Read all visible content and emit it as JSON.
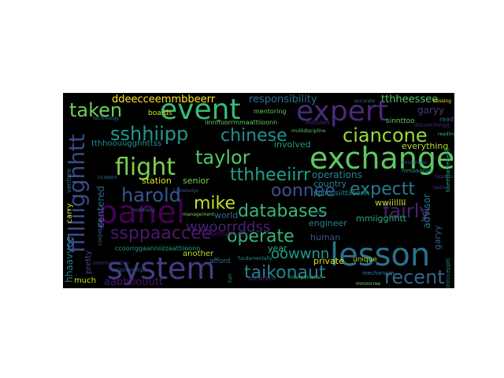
{
  "words": [
    {
      "text": "event",
      "color": "#3aba76"
    },
    {
      "text": "expert",
      "color": "#482a7a"
    },
    {
      "text": "exchange",
      "color": "#5ec962"
    },
    {
      "text": "lesson",
      "color": "#2c718e"
    },
    {
      "text": "system",
      "color": "#433e85"
    },
    {
      "text": "panel",
      "color": "#440154"
    },
    {
      "text": "flight",
      "color": "#7ad151"
    },
    {
      "text": "taken",
      "color": "#6ece58"
    },
    {
      "text": "sshhiipp",
      "color": "#1f9a8a"
    },
    {
      "text": "chinese",
      "color": "#21918c"
    },
    {
      "text": "ciancone",
      "color": "#9bd93c"
    },
    {
      "text": "taylor",
      "color": "#52c569"
    },
    {
      "text": "tthheeiirr",
      "color": "#1fa187"
    },
    {
      "text": "oonnee",
      "color": "#3b528b"
    },
    {
      "text": "expectt",
      "color": "#2a788e"
    },
    {
      "text": "harold",
      "color": "#39558c"
    },
    {
      "text": "mike",
      "color": "#c2df23"
    },
    {
      "text": "databases",
      "color": "#38b977"
    },
    {
      "text": "fairly",
      "color": "#482071"
    },
    {
      "text": "ssppaaccee",
      "color": "#481a6c"
    },
    {
      "text": "wwoorrddss",
      "color": "#482173"
    },
    {
      "text": "operate",
      "color": "#35b779"
    },
    {
      "text": "oowwnn",
      "color": "#1e9c89"
    },
    {
      "text": "taikonaut",
      "color": "#25858e"
    },
    {
      "text": "recent",
      "color": "#31678e"
    },
    {
      "text": "ffllliigghhtt",
      "color": "#3e4989"
    },
    {
      "text": "ddeecceemmbbeerr",
      "color": "#fde725"
    },
    {
      "text": "responsibility",
      "color": "#2d708e"
    },
    {
      "text": "tthheessee",
      "color": "#52c569"
    },
    {
      "text": "garyy",
      "color": "#443a83"
    },
    {
      "text": "sinnttoo",
      "color": "#5ec962"
    },
    {
      "text": "tthhoouugghhttss",
      "color": "#1f948c"
    },
    {
      "text": "involved",
      "color": "#1e9d89"
    },
    {
      "text": "everything",
      "color": "#addc30"
    },
    {
      "text": "operations",
      "color": "#24878e"
    },
    {
      "text": "station",
      "color": "#dde318"
    },
    {
      "text": "senior",
      "color": "#7ad151"
    },
    {
      "text": "centered",
      "color": "#31688e"
    },
    {
      "text": "advisor",
      "color": "#2a788e"
    },
    {
      "text": "wwiilllll",
      "color": "#bddf26"
    },
    {
      "text": "mmiigghhtt",
      "color": "#28ae80"
    },
    {
      "text": "garyy",
      "color": "#365c8d"
    },
    {
      "text": "engineer",
      "color": "#25838e"
    },
    {
      "text": "human",
      "color": "#3b528b"
    },
    {
      "text": "private",
      "color": "#d8e219"
    },
    {
      "text": "unique",
      "color": "#b5de2b"
    },
    {
      "text": "year",
      "color": "#2ab07f"
    },
    {
      "text": "country",
      "color": "#23888e"
    },
    {
      "text": "world",
      "color": "#2c728e"
    },
    {
      "text": "another",
      "color": "#b5de2b"
    },
    {
      "text": "afford",
      "color": "#2c738e"
    },
    {
      "text": "pretty",
      "color": "#3f4788"
    },
    {
      "text": "much",
      "color": "#c8e020"
    },
    {
      "text": "aabboouutt",
      "color": "#48186a"
    },
    {
      "text": "hhaavvee",
      "color": "#277f8e"
    },
    {
      "text": "carry",
      "color": "#c0df25"
    },
    {
      "text": "boards",
      "color": "#d0e11c"
    },
    {
      "text": "mission",
      "color": "#46337f"
    },
    {
      "text": "mentoring",
      "color": "#5ec962"
    },
    {
      "text": "read",
      "color": "#2e6e8e"
    },
    {
      "text": "different",
      "color": "#472c7a"
    },
    {
      "text": "mechanism",
      "color": "#26828e"
    },
    {
      "text": "memory",
      "color": "#38598c"
    },
    {
      "text": "venture",
      "color": "#2a778e"
    },
    {
      "text": "corporate",
      "color": "#2e6f8e"
    },
    {
      "text": "relationships",
      "color": "#3a548c"
    },
    {
      "text": "ppoossiittiioonn",
      "color": "#20928c"
    },
    {
      "text": "wwhheerree",
      "color": "#471063"
    },
    {
      "text": "ccoorrggaanniizzaattiioonn",
      "color": "#1f9f88"
    },
    {
      "text": "iinnffoorrmmaattiioonn",
      "color": "#5cc863"
    },
    {
      "text": "ccaavv",
      "color": "#31688e"
    },
    {
      "text": "fundamentally",
      "color": "#1f988b"
    },
    {
      "text": "multidiscipline",
      "color": "#5ec962"
    },
    {
      "text": "accurate",
      "color": "#2c728e"
    },
    {
      "text": "knowledge",
      "color": "#3e4989"
    },
    {
      "text": "hall",
      "color": "#21918c"
    },
    {
      "text": "communication",
      "color": "#443a83"
    },
    {
      "text": "interpersonal",
      "color": "#3aba76"
    },
    {
      "text": "management",
      "color": "#7ad151"
    },
    {
      "text": "missing",
      "color": "#fde725"
    },
    {
      "text": "technology",
      "color": "#2a788e"
    },
    {
      "text": "reading",
      "color": "#35b779"
    },
    {
      "text": "opportunity",
      "color": "#46307e"
    },
    {
      "text": "encourage",
      "color": "#2d708e"
    },
    {
      "text": "tasks",
      "color": "#433e85"
    },
    {
      "text": "mmaannyy",
      "color": "#1f9e89"
    },
    {
      "text": "dduurriinngg",
      "color": "#482878"
    },
    {
      "text": "bbeettwweeeen",
      "color": "#22a884"
    },
    {
      "text": "iinnttoo",
      "color": "#3b528b"
    },
    {
      "text": "ccoonnccepptt",
      "color": "#26828e"
    },
    {
      "text": "mmoorree",
      "color": "#7ad151"
    }
  ]
}
